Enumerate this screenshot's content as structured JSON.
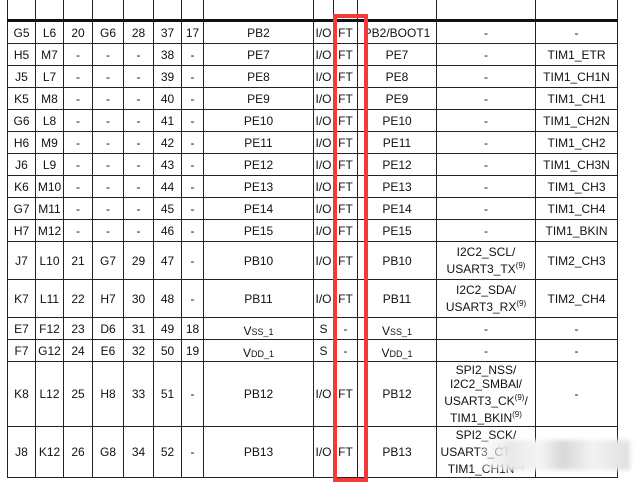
{
  "rows": [
    {
      "c": [
        "G5",
        "L6",
        "20",
        "G6",
        "28",
        "37",
        "17",
        "PB2",
        "I/O",
        "FT",
        "PB2/BOOT1",
        "-",
        "-"
      ]
    },
    {
      "c": [
        "H5",
        "M7",
        "-",
        "-",
        "-",
        "38",
        "-",
        "PE7",
        "I/O",
        "FT",
        "PE7",
        "-",
        "TIM1_ETR"
      ]
    },
    {
      "c": [
        "J5",
        "L7",
        "-",
        "-",
        "-",
        "39",
        "-",
        "PE8",
        "I/O",
        "FT",
        "PE8",
        "-",
        "TIM1_CH1N"
      ]
    },
    {
      "c": [
        "K5",
        "M8",
        "-",
        "-",
        "-",
        "40",
        "-",
        "PE9",
        "I/O",
        "FT",
        "PE9",
        "-",
        "TIM1_CH1"
      ]
    },
    {
      "c": [
        "G6",
        "L8",
        "-",
        "-",
        "-",
        "41",
        "-",
        "PE10",
        "I/O",
        "FT",
        "PE10",
        "-",
        "TIM1_CH2N"
      ]
    },
    {
      "c": [
        "H6",
        "M9",
        "-",
        "-",
        "-",
        "42",
        "-",
        "PE11",
        "I/O",
        "FT",
        "PE11",
        "-",
        "TIM1_CH2"
      ]
    },
    {
      "c": [
        "J6",
        "L9",
        "-",
        "-",
        "-",
        "43",
        "-",
        "PE12",
        "I/O",
        "FT",
        "PE12",
        "-",
        "TIM1_CH3N"
      ]
    },
    {
      "c": [
        "K6",
        "M10",
        "-",
        "-",
        "-",
        "44",
        "-",
        "PE13",
        "I/O",
        "FT",
        "PE13",
        "-",
        "TIM1_CH3"
      ]
    },
    {
      "c": [
        "G7",
        "M11",
        "-",
        "-",
        "-",
        "45",
        "-",
        "PE14",
        "I/O",
        "FT",
        "PE14",
        "-",
        "TIM1_CH4"
      ]
    },
    {
      "c": [
        "H7",
        "M12",
        "-",
        "-",
        "-",
        "46",
        "-",
        "PE15",
        "I/O",
        "FT",
        "PE15",
        "-",
        "TIM1_BKIN"
      ]
    },
    {
      "c": [
        "J7",
        "L10",
        "21",
        "G7",
        "29",
        "47",
        "-",
        "PB10",
        "I/O",
        "FT",
        "PB10",
        "I2C2_SCL/\nUSART3_TX(9)",
        "TIM2_CH3"
      ]
    },
    {
      "c": [
        "K7",
        "L11",
        "22",
        "H7",
        "30",
        "48",
        "-",
        "PB11",
        "I/O",
        "FT",
        "PB11",
        "I2C2_SDA/\nUSART3_RX(9)",
        "TIM2_CH4"
      ]
    },
    {
      "c": [
        "E7",
        "F12",
        "23",
        "D6",
        "31",
        "49",
        "18",
        "VSS_1",
        "S",
        "-",
        "VSS_1",
        "-",
        "-"
      ]
    },
    {
      "c": [
        "F7",
        "G12",
        "24",
        "E6",
        "32",
        "50",
        "19",
        "VDD_1",
        "S",
        "-",
        "VDD_1",
        "-",
        "-"
      ]
    },
    {
      "c": [
        "K8",
        "L12",
        "25",
        "H8",
        "33",
        "51",
        "-",
        "PB12",
        "I/O",
        "FT",
        "PB12",
        "SPI2_NSS/\nI2C2_SMBAl/\nUSART3_CK(9)/\nTIM1_BKIN(9)",
        "-"
      ]
    },
    {
      "c": [
        "J8",
        "K12",
        "26",
        "G8",
        "34",
        "52",
        "-",
        "PB13",
        "I/O",
        "FT",
        "PB13",
        "SPI2_SCK/\nUSART3_CTS(9)/\nTIM1_CH1N(9)",
        "-"
      ]
    }
  ],
  "highlight_color": "#f23a3a"
}
